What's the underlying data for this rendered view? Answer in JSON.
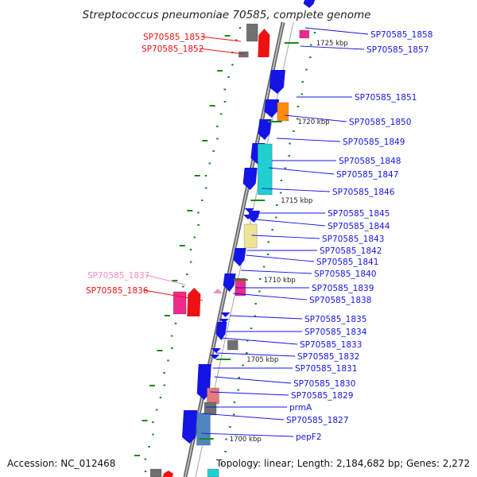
{
  "title": "Streptococcus pneumoniae 70585, complete genome",
  "footer": {
    "accession": "Accession: NC_012468",
    "summary": "Topology: linear; Length: 2,184,682 bp; Genes: 2,272"
  },
  "colors": {
    "blue": "#1414e6",
    "red": "#ee1111",
    "pink": "#ee2a8a",
    "light_pink": "#f38bbf",
    "gray": "#707070",
    "orange": "#ff8c10",
    "cyan": "#20d0d0",
    "yellow": "#eee496",
    "salmon": "#e77a7a",
    "steel": "#4f86c0",
    "backbone": "#8c8c8c"
  },
  "kbp_markers": [
    "1725 kbp",
    "1720 kbp",
    "1715 kbp",
    "1710 kbp",
    "1705 kbp",
    "1700 kbp"
  ],
  "genes_right": [
    "SP70585_1858",
    "SP70585_1857",
    "SP70585_1851",
    "SP70585_1850",
    "SP70585_1849",
    "SP70585_1848",
    "SP70585_1847",
    "SP70585_1846",
    "SP70585_1845",
    "SP70585_1844",
    "SP70585_1843",
    "SP70585_1842",
    "SP70585_1841",
    "SP70585_1840",
    "SP70585_1839",
    "SP70585_1838",
    "SP70585_1835",
    "SP70585_1834",
    "SP70585_1833",
    "SP70585_1832",
    "SP70585_1831",
    "SP70585_1830",
    "SP70585_1829",
    "prmA",
    "SP70585_1827",
    "pepF2"
  ],
  "genes_left": [
    {
      "label": "SP70585_1853",
      "color": "#ee1111"
    },
    {
      "label": "SP70585_1852",
      "color": "#ee1111"
    },
    {
      "label": "SP70585_1837",
      "color": "#f38bbf"
    },
    {
      "label": "SP70585_1836",
      "color": "#ee1111"
    }
  ]
}
